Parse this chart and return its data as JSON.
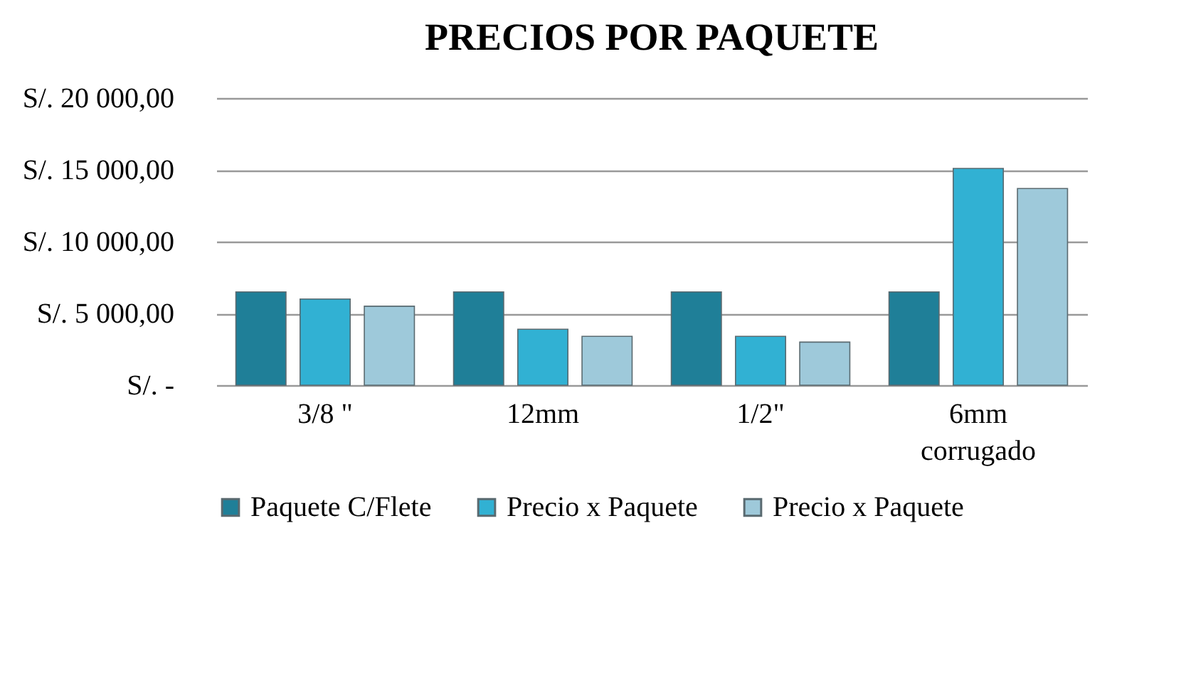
{
  "chart_data": {
    "type": "bar",
    "title": "PRECIOS POR PAQUETE",
    "categories": [
      "3/8 \"",
      "12mm",
      "1/2\"",
      "6mm corrugado"
    ],
    "series": [
      {
        "name": "Paquete C/Flete",
        "color": "#1f7f98",
        "values": [
          6500,
          6500,
          6500,
          6500
        ]
      },
      {
        "name": "Precio x Paquete",
        "color": "#31b1d3",
        "values": [
          6000,
          3900,
          3400,
          15100
        ]
      },
      {
        "name": "Precio x Paquete",
        "color": "#9ec9da",
        "values": [
          5500,
          3400,
          3000,
          13700
        ]
      }
    ],
    "ylim": [
      0,
      20000
    ],
    "yticks": [
      {
        "value": 0,
        "label": "S/. -"
      },
      {
        "value": 5000,
        "label": "S/. 5 000,00"
      },
      {
        "value": 10000,
        "label": "S/. 10 000,00"
      },
      {
        "value": 15000,
        "label": "S/. 15 000,00"
      },
      {
        "value": 20000,
        "label": "S/. 20 000,00"
      }
    ],
    "grid": "y",
    "legend": "bottom"
  }
}
